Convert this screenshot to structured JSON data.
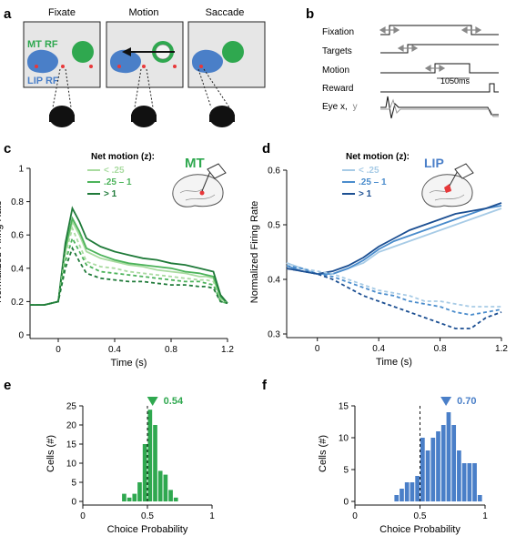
{
  "panel_letters": [
    "a",
    "b",
    "c",
    "d",
    "e",
    "f"
  ],
  "panel_a": {
    "titles": [
      "Fixate",
      "Motion",
      "Saccade"
    ],
    "mt_rf_label": "MT RF",
    "lip_rf_label": "LIP RF",
    "colors": {
      "mt": "#2fa84f",
      "lip": "#4a7fc8",
      "target": "#e8383a",
      "bg": "#e6e6e6"
    }
  },
  "panel_b": {
    "rows": [
      "Fixation",
      "Targets",
      "Motion",
      "Reward",
      "Eye x,",
      "y"
    ],
    "duration_label": "1050ms"
  },
  "panel_c": {
    "legend_title": "Net motion (z):",
    "area_label": "MT",
    "legend": [
      "< .25",
      ".25 – 1",
      "> 1"
    ],
    "colors": [
      "#a9dba0",
      "#4cb35a",
      "#1f7a39"
    ]
  },
  "panel_d": {
    "legend_title": "Net motion (z):",
    "area_label": "LIP",
    "legend": [
      "< .25",
      ".25 – 1",
      "> 1"
    ],
    "colors": [
      "#a7cbe6",
      "#4a8ccc",
      "#1c4f92"
    ]
  },
  "panel_e": {
    "cp_label": "0.54",
    "color": "#2fa84f"
  },
  "panel_f": {
    "cp_label": "0.70",
    "color": "#4a7fc8"
  },
  "chart_data": [
    {
      "type": "line",
      "panel": "c",
      "xlabel": "Time (s)",
      "ylabel": "Normalized Firing Rate",
      "xlim": [
        -0.2,
        1.2
      ],
      "ylim": [
        0,
        1.0
      ],
      "xticks": [
        "0",
        "0.4",
        "0.8",
        "1.2"
      ],
      "yticks": [
        "0",
        "0.2",
        "0.4",
        "0.6",
        "0.8",
        "1"
      ],
      "x": [
        -0.2,
        -0.1,
        0,
        0.05,
        0.1,
        0.15,
        0.2,
        0.3,
        0.4,
        0.5,
        0.6,
        0.7,
        0.8,
        0.9,
        1.0,
        1.05,
        1.1,
        1.15,
        1.2
      ],
      "series": [
        {
          "name": "< .25",
          "style": "solid",
          "values": [
            0.18,
            0.18,
            0.2,
            0.5,
            0.68,
            0.6,
            0.5,
            0.46,
            0.44,
            0.42,
            0.41,
            0.39,
            0.38,
            0.37,
            0.35,
            0.35,
            0.34,
            0.22,
            0.19
          ]
        },
        {
          "name": ".25 – 1",
          "style": "solid",
          "values": [
            0.18,
            0.18,
            0.2,
            0.52,
            0.7,
            0.62,
            0.52,
            0.48,
            0.45,
            0.43,
            0.42,
            0.41,
            0.4,
            0.38,
            0.37,
            0.36,
            0.35,
            0.23,
            0.19
          ]
        },
        {
          "name": "> 1",
          "style": "solid",
          "values": [
            0.18,
            0.18,
            0.2,
            0.55,
            0.76,
            0.68,
            0.58,
            0.53,
            0.5,
            0.48,
            0.46,
            0.45,
            0.43,
            0.42,
            0.4,
            0.39,
            0.38,
            0.24,
            0.19
          ]
        },
        {
          "name": "< .25",
          "style": "dashed",
          "values": [
            0.18,
            0.18,
            0.2,
            0.48,
            0.64,
            0.54,
            0.44,
            0.41,
            0.4,
            0.38,
            0.37,
            0.36,
            0.35,
            0.34,
            0.33,
            0.33,
            0.32,
            0.21,
            0.19
          ]
        },
        {
          "name": ".25 – 1",
          "style": "dashed",
          "values": [
            0.18,
            0.18,
            0.2,
            0.44,
            0.58,
            0.5,
            0.42,
            0.38,
            0.37,
            0.36,
            0.35,
            0.34,
            0.33,
            0.32,
            0.32,
            0.31,
            0.3,
            0.2,
            0.19
          ]
        },
        {
          "name": "> 1",
          "style": "dashed",
          "values": [
            0.18,
            0.18,
            0.2,
            0.4,
            0.52,
            0.44,
            0.37,
            0.34,
            0.33,
            0.32,
            0.32,
            0.31,
            0.3,
            0.3,
            0.29,
            0.29,
            0.28,
            0.2,
            0.19
          ]
        }
      ]
    },
    {
      "type": "line",
      "panel": "d",
      "xlabel": "Time (s)",
      "ylabel": "Normalized Firing Rate",
      "xlim": [
        -0.2,
        1.2
      ],
      "ylim": [
        0.3,
        0.6
      ],
      "xticks": [
        "0",
        "0.4",
        "0.8",
        "1.2"
      ],
      "yticks": [
        "0.3",
        "0.4",
        "0.5",
        "0.6"
      ],
      "x": [
        -0.2,
        -0.1,
        0,
        0.1,
        0.2,
        0.3,
        0.4,
        0.5,
        0.6,
        0.7,
        0.8,
        0.9,
        1.0,
        1.1,
        1.2
      ],
      "series": [
        {
          "name": "< .25",
          "style": "solid",
          "values": [
            0.43,
            0.42,
            0.41,
            0.41,
            0.42,
            0.43,
            0.45,
            0.46,
            0.47,
            0.48,
            0.49,
            0.5,
            0.51,
            0.52,
            0.53
          ]
        },
        {
          "name": ".25 – 1",
          "style": "solid",
          "values": [
            0.425,
            0.415,
            0.41,
            0.41,
            0.42,
            0.435,
            0.455,
            0.47,
            0.48,
            0.49,
            0.5,
            0.51,
            0.52,
            0.53,
            0.535
          ]
        },
        {
          "name": "> 1",
          "style": "solid",
          "values": [
            0.42,
            0.415,
            0.41,
            0.415,
            0.425,
            0.44,
            0.46,
            0.475,
            0.49,
            0.5,
            0.51,
            0.52,
            0.525,
            0.53,
            0.54
          ]
        },
        {
          "name": "< .25",
          "style": "dashed",
          "values": [
            0.43,
            0.42,
            0.415,
            0.41,
            0.4,
            0.39,
            0.38,
            0.375,
            0.37,
            0.36,
            0.36,
            0.355,
            0.35,
            0.35,
            0.35
          ]
        },
        {
          "name": ".25 – 1",
          "style": "dashed",
          "values": [
            0.425,
            0.42,
            0.41,
            0.405,
            0.395,
            0.385,
            0.375,
            0.37,
            0.36,
            0.355,
            0.35,
            0.34,
            0.335,
            0.34,
            0.345
          ]
        },
        {
          "name": "> 1",
          "style": "dashed",
          "values": [
            0.42,
            0.415,
            0.41,
            0.4,
            0.385,
            0.37,
            0.36,
            0.35,
            0.34,
            0.33,
            0.32,
            0.31,
            0.31,
            0.33,
            0.34
          ]
        }
      ]
    },
    {
      "type": "bar",
      "panel": "e",
      "xlabel": "Choice Probability",
      "ylabel": "Cells (#)",
      "xlim": [
        0,
        1
      ],
      "ylim": [
        0,
        25
      ],
      "xticks": [
        "0",
        "0.5",
        "1"
      ],
      "yticks": [
        "0",
        "5",
        "10",
        "15",
        "20",
        "25"
      ],
      "bin_width": 0.04,
      "bin_starts": [
        0.3,
        0.34,
        0.38,
        0.42,
        0.46,
        0.5,
        0.54,
        0.58,
        0.62,
        0.66,
        0.7
      ],
      "values": [
        2,
        1,
        2,
        5,
        15,
        24,
        20,
        8,
        7,
        3,
        1
      ],
      "mean": 0.54,
      "reference_line": 0.5
    },
    {
      "type": "bar",
      "panel": "f",
      "xlabel": "Choice Probability",
      "ylabel": "Cells (#)",
      "xlim": [
        0,
        1
      ],
      "ylim": [
        0,
        15
      ],
      "xticks": [
        "0",
        "0.5",
        "1"
      ],
      "yticks": [
        "0",
        "5",
        "10",
        "15"
      ],
      "bin_width": 0.04,
      "bin_starts": [
        0.3,
        0.34,
        0.38,
        0.42,
        0.46,
        0.5,
        0.54,
        0.58,
        0.62,
        0.66,
        0.7,
        0.74,
        0.78,
        0.82,
        0.86,
        0.9,
        0.94
      ],
      "values": [
        1,
        2,
        3,
        3,
        4,
        10,
        8,
        10,
        11,
        12,
        14,
        12,
        8,
        6,
        6,
        6,
        1
      ],
      "mean": 0.7,
      "reference_line": 0.5
    }
  ]
}
